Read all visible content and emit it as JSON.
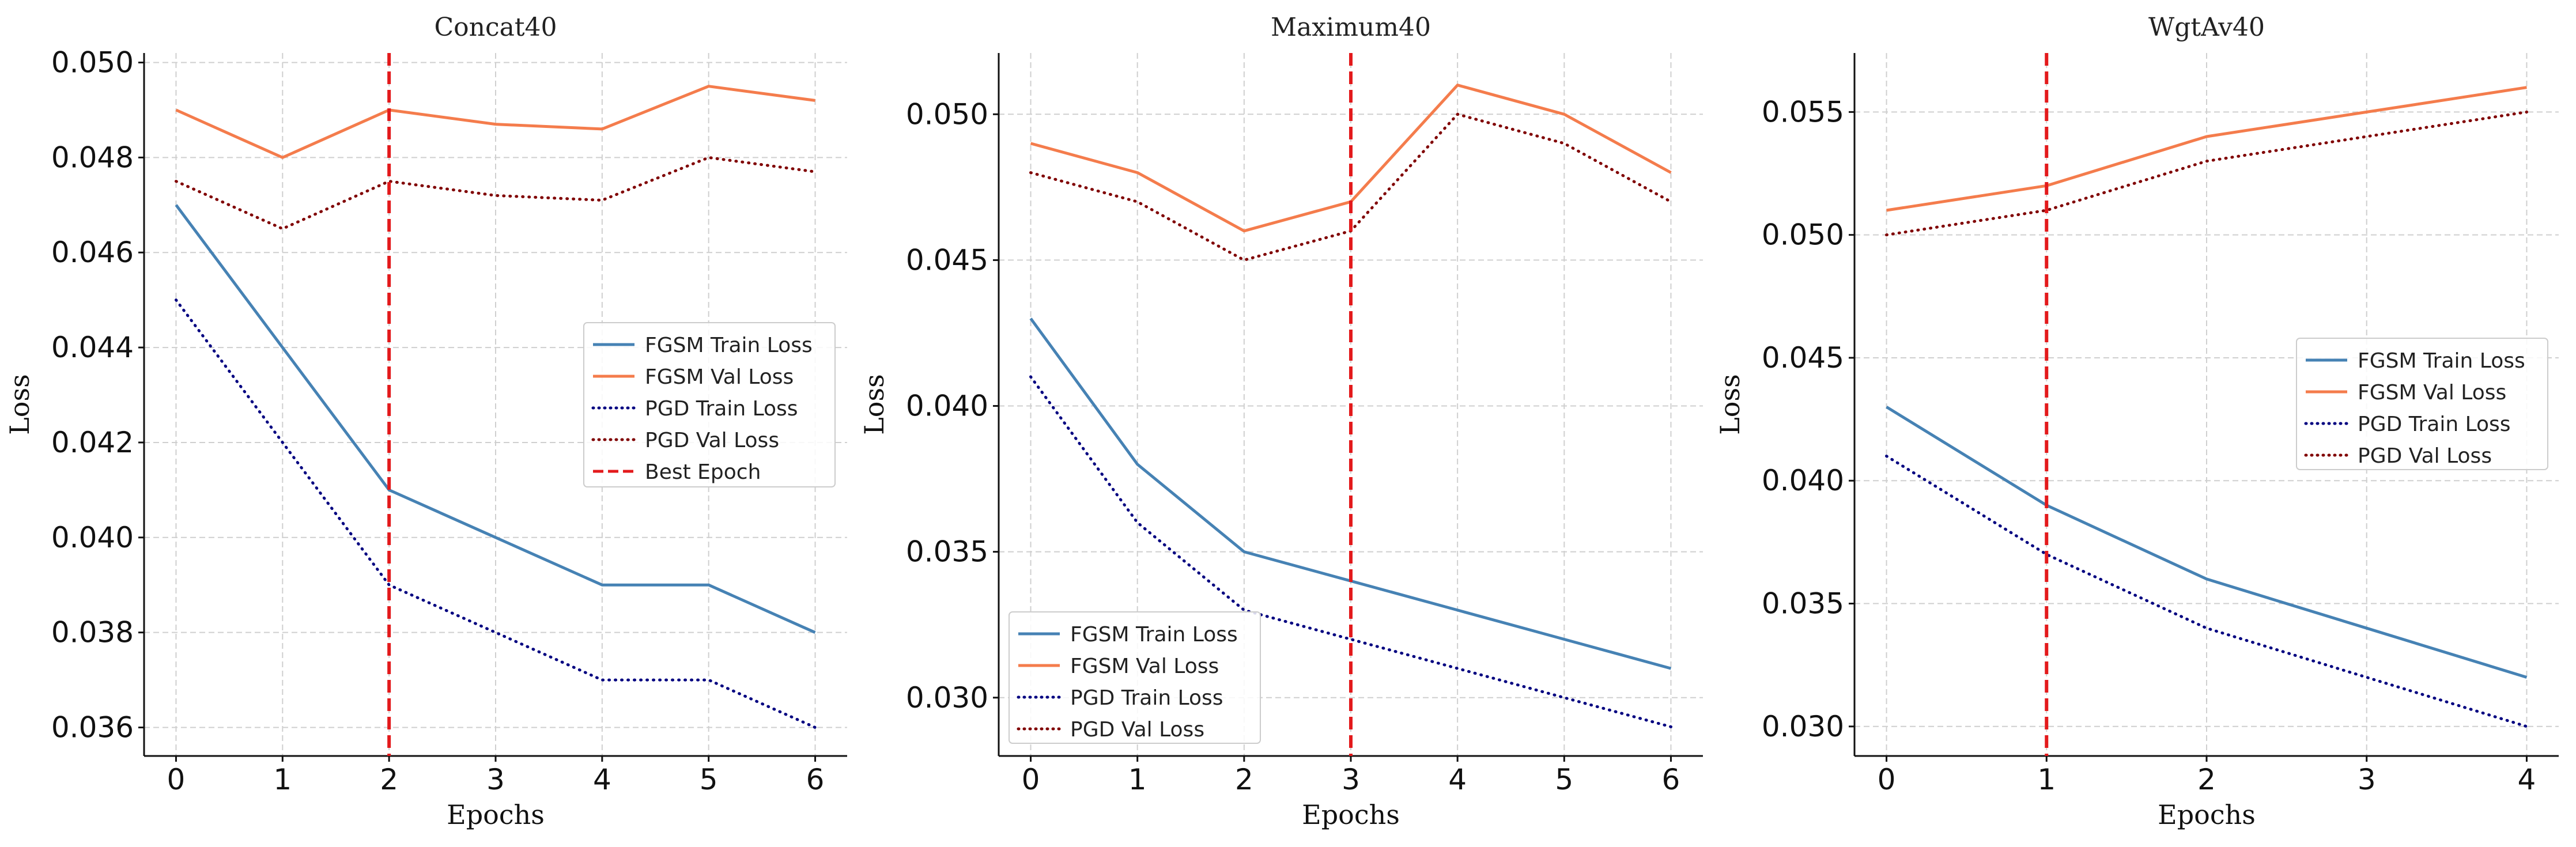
{
  "colors": {
    "fgsm_train": "#4682b4",
    "fgsm_val": "#f47c4c",
    "pgd_train": "#000080",
    "pgd_val": "#800000",
    "best_epoch": "#e31a1c"
  },
  "chart_data": [
    {
      "type": "line",
      "title": "Concat40",
      "xlabel": "Epochs",
      "ylabel": "Loss",
      "x": [
        0,
        1,
        2,
        3,
        4,
        5,
        6
      ],
      "xlim": [
        -0.3,
        6.3
      ],
      "ylim": [
        0.0354,
        0.0502
      ],
      "yticks": [
        0.036,
        0.038,
        0.04,
        0.042,
        0.044,
        0.046,
        0.048,
        0.05
      ],
      "ytick_labels": [
        "0.036",
        "0.038",
        "0.040",
        "0.042",
        "0.044",
        "0.046",
        "0.048",
        "0.050"
      ],
      "grid": true,
      "best_epoch": 2,
      "legend_position": "center-right",
      "series": [
        {
          "name": "FGSM Train Loss",
          "style": "solid",
          "color_key": "fgsm_train",
          "values": [
            0.047,
            0.044,
            0.041,
            0.04,
            0.039,
            0.039,
            0.038
          ]
        },
        {
          "name": "FGSM Val Loss",
          "style": "solid",
          "color_key": "fgsm_val",
          "values": [
            0.049,
            0.048,
            0.049,
            0.0487,
            0.0486,
            0.0495,
            0.0492
          ]
        },
        {
          "name": "PGD Train Loss",
          "style": "dotted",
          "color_key": "pgd_train",
          "values": [
            0.045,
            0.042,
            0.039,
            0.038,
            0.037,
            0.037,
            0.036
          ]
        },
        {
          "name": "PGD Val Loss",
          "style": "dotted",
          "color_key": "pgd_val",
          "values": [
            0.0475,
            0.0465,
            0.0475,
            0.0472,
            0.0471,
            0.048,
            0.0477
          ]
        }
      ],
      "best_epoch_label": "Best Epoch"
    },
    {
      "type": "line",
      "title": "Maximum40",
      "xlabel": "Epochs",
      "ylabel": "Loss",
      "x": [
        0,
        1,
        2,
        3,
        4,
        5,
        6
      ],
      "xlim": [
        -0.3,
        6.3
      ],
      "ylim": [
        0.028,
        0.0521
      ],
      "yticks": [
        0.03,
        0.035,
        0.04,
        0.045,
        0.05
      ],
      "ytick_labels": [
        "0.030",
        "0.035",
        "0.040",
        "0.045",
        "0.050"
      ],
      "grid": true,
      "best_epoch": 3,
      "legend_position": "bottom-left",
      "series": [
        {
          "name": "FGSM Train Loss",
          "style": "solid",
          "color_key": "fgsm_train",
          "values": [
            0.043,
            0.038,
            0.035,
            0.034,
            0.033,
            0.032,
            0.031
          ]
        },
        {
          "name": "FGSM Val Loss",
          "style": "solid",
          "color_key": "fgsm_val",
          "values": [
            0.049,
            0.048,
            0.046,
            0.047,
            0.051,
            0.05,
            0.048
          ]
        },
        {
          "name": "PGD Train Loss",
          "style": "dotted",
          "color_key": "pgd_train",
          "values": [
            0.041,
            0.036,
            0.033,
            0.032,
            0.031,
            0.03,
            0.029
          ]
        },
        {
          "name": "PGD Val Loss",
          "style": "dotted",
          "color_key": "pgd_val",
          "values": [
            0.048,
            0.047,
            0.045,
            0.046,
            0.05,
            0.049,
            0.047
          ]
        }
      ]
    },
    {
      "type": "line",
      "title": "WgtAv40",
      "xlabel": "Epochs",
      "ylabel": "Loss",
      "x": [
        0,
        1,
        2,
        3,
        4
      ],
      "xlim": [
        -0.2,
        4.2
      ],
      "ylim": [
        0.0288,
        0.0574
      ],
      "yticks": [
        0.03,
        0.035,
        0.04,
        0.045,
        0.05,
        0.055
      ],
      "ytick_labels": [
        "0.030",
        "0.035",
        "0.040",
        "0.045",
        "0.050",
        "0.055"
      ],
      "grid": true,
      "best_epoch": 1,
      "legend_position": "center-right",
      "series": [
        {
          "name": "FGSM Train Loss",
          "style": "solid",
          "color_key": "fgsm_train",
          "values": [
            0.043,
            0.039,
            0.036,
            0.034,
            0.032
          ]
        },
        {
          "name": "FGSM Val Loss",
          "style": "solid",
          "color_key": "fgsm_val",
          "values": [
            0.051,
            0.052,
            0.054,
            0.055,
            0.056
          ]
        },
        {
          "name": "PGD Train Loss",
          "style": "dotted",
          "color_key": "pgd_train",
          "values": [
            0.041,
            0.037,
            0.034,
            0.032,
            0.03
          ]
        },
        {
          "name": "PGD Val Loss",
          "style": "dotted",
          "color_key": "pgd_val",
          "values": [
            0.05,
            0.051,
            0.053,
            0.054,
            0.055
          ]
        }
      ]
    }
  ]
}
